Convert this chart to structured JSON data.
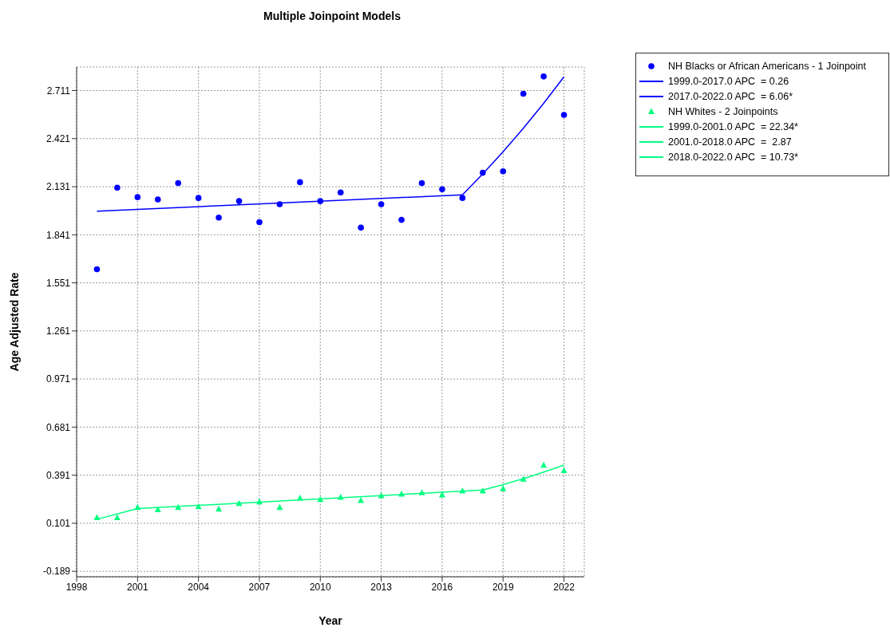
{
  "chart_data": {
    "type": "scatter",
    "title": "Multiple Joinpoint Models",
    "xlabel": "Year",
    "ylabel": "Age Adjusted Rate",
    "xlim": [
      1998,
      2023
    ],
    "xticks": [
      1998,
      2001,
      2004,
      2007,
      2010,
      2013,
      2016,
      2019,
      2022
    ],
    "ylim": [
      -0.222,
      2.853
    ],
    "yticks": [
      -0.189,
      0.101,
      0.391,
      0.681,
      0.971,
      1.261,
      1.551,
      1.841,
      2.131,
      2.421,
      2.711
    ],
    "grid": true,
    "legend": "top right",
    "series": [
      {
        "name": "NH Blacks or African Americans - 1 Joinpoint",
        "marker": "circle",
        "color": "#0000ff",
        "x": [
          1999,
          2000,
          2001,
          2002,
          2003,
          2004,
          2005,
          2006,
          2007,
          2008,
          2009,
          2010,
          2011,
          2012,
          2013,
          2014,
          2015,
          2016,
          2017,
          2018,
          2019,
          2020,
          2021,
          2022
        ],
        "values": [
          1.633,
          2.125,
          2.068,
          2.054,
          2.153,
          2.063,
          1.945,
          2.044,
          1.917,
          2.025,
          2.158,
          2.044,
          2.096,
          1.884,
          2.025,
          1.931,
          2.153,
          2.115,
          2.063,
          2.215,
          2.224,
          2.692,
          2.796,
          2.564
        ]
      },
      {
        "name": "1999.0-2017.0 APC  = 0.26",
        "type": "line",
        "color": "#0000ff",
        "x": [
          1999,
          2017
        ],
        "values": [
          1.983,
          2.082
        ]
      },
      {
        "name": "2017.0-2022.0 APC  = 6.06*",
        "type": "line",
        "color": "#0000ff",
        "x": [
          2017,
          2018,
          2019,
          2020,
          2021,
          2022
        ],
        "values": [
          2.082,
          2.208,
          2.342,
          2.484,
          2.634,
          2.794
        ]
      },
      {
        "name": "NH Whites - 2 Joinpoints",
        "marker": "triangle",
        "color": "#00ff80",
        "x": [
          1999,
          2000,
          2001,
          2002,
          2003,
          2004,
          2005,
          2006,
          2007,
          2008,
          2009,
          2010,
          2011,
          2012,
          2013,
          2014,
          2015,
          2016,
          2017,
          2018,
          2019,
          2020,
          2021,
          2022
        ],
        "values": [
          0.134,
          0.134,
          0.196,
          0.182,
          0.196,
          0.2,
          0.186,
          0.219,
          0.229,
          0.196,
          0.252,
          0.243,
          0.257,
          0.238,
          0.267,
          0.276,
          0.285,
          0.271,
          0.295,
          0.295,
          0.309,
          0.366,
          0.451,
          0.418
        ]
      },
      {
        "name": "1999.0-2001.0 APC  = 22.34*",
        "type": "line",
        "color": "#00ff80",
        "x": [
          1999,
          2001
        ],
        "values": [
          0.125,
          0.189
        ]
      },
      {
        "name": "2001.0-2018.0 APC  =  2.87",
        "type": "line",
        "color": "#00ff80",
        "x": [
          2001,
          2018
        ],
        "values": [
          0.189,
          0.301
        ]
      },
      {
        "name": "2018.0-2022.0 APC  = 10.73*",
        "type": "line",
        "color": "#00ff80",
        "x": [
          2018,
          2019,
          2020,
          2021,
          2022
        ],
        "values": [
          0.301,
          0.334,
          0.37,
          0.41,
          0.452
        ]
      }
    ]
  }
}
